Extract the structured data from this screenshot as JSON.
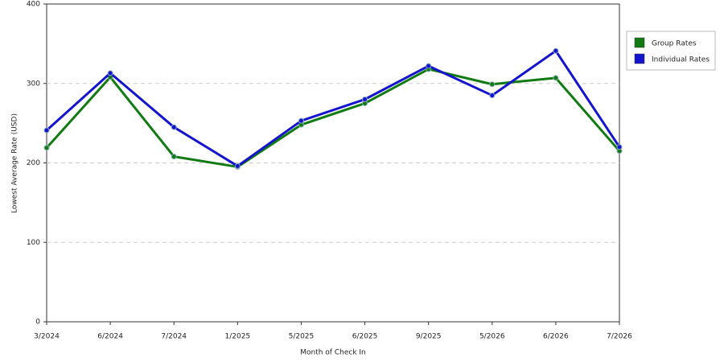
{
  "chart_data": {
    "type": "line",
    "x_label": "Month of Check In",
    "y_label": "Lowest Average Rate (USD)",
    "categories": [
      "3/2024",
      "6/2024",
      "7/2024",
      "1/2025",
      "5/2025",
      "6/2025",
      "9/2025",
      "5/2026",
      "6/2026",
      "7/2026"
    ],
    "series": [
      {
        "name": "Group Rates",
        "color": "#127a12",
        "values": [
          219,
          308,
          208,
          195,
          248,
          275,
          318,
          299,
          307,
          215
        ]
      },
      {
        "name": "Individual Rates",
        "color": "#1414cc",
        "values": [
          241,
          313,
          245,
          196,
          253,
          280,
          322,
          285,
          341,
          220
        ]
      }
    ],
    "ylim": [
      0,
      400
    ],
    "yticks": [
      0,
      100,
      200,
      300,
      400
    ],
    "grid": true,
    "legend": "right"
  }
}
